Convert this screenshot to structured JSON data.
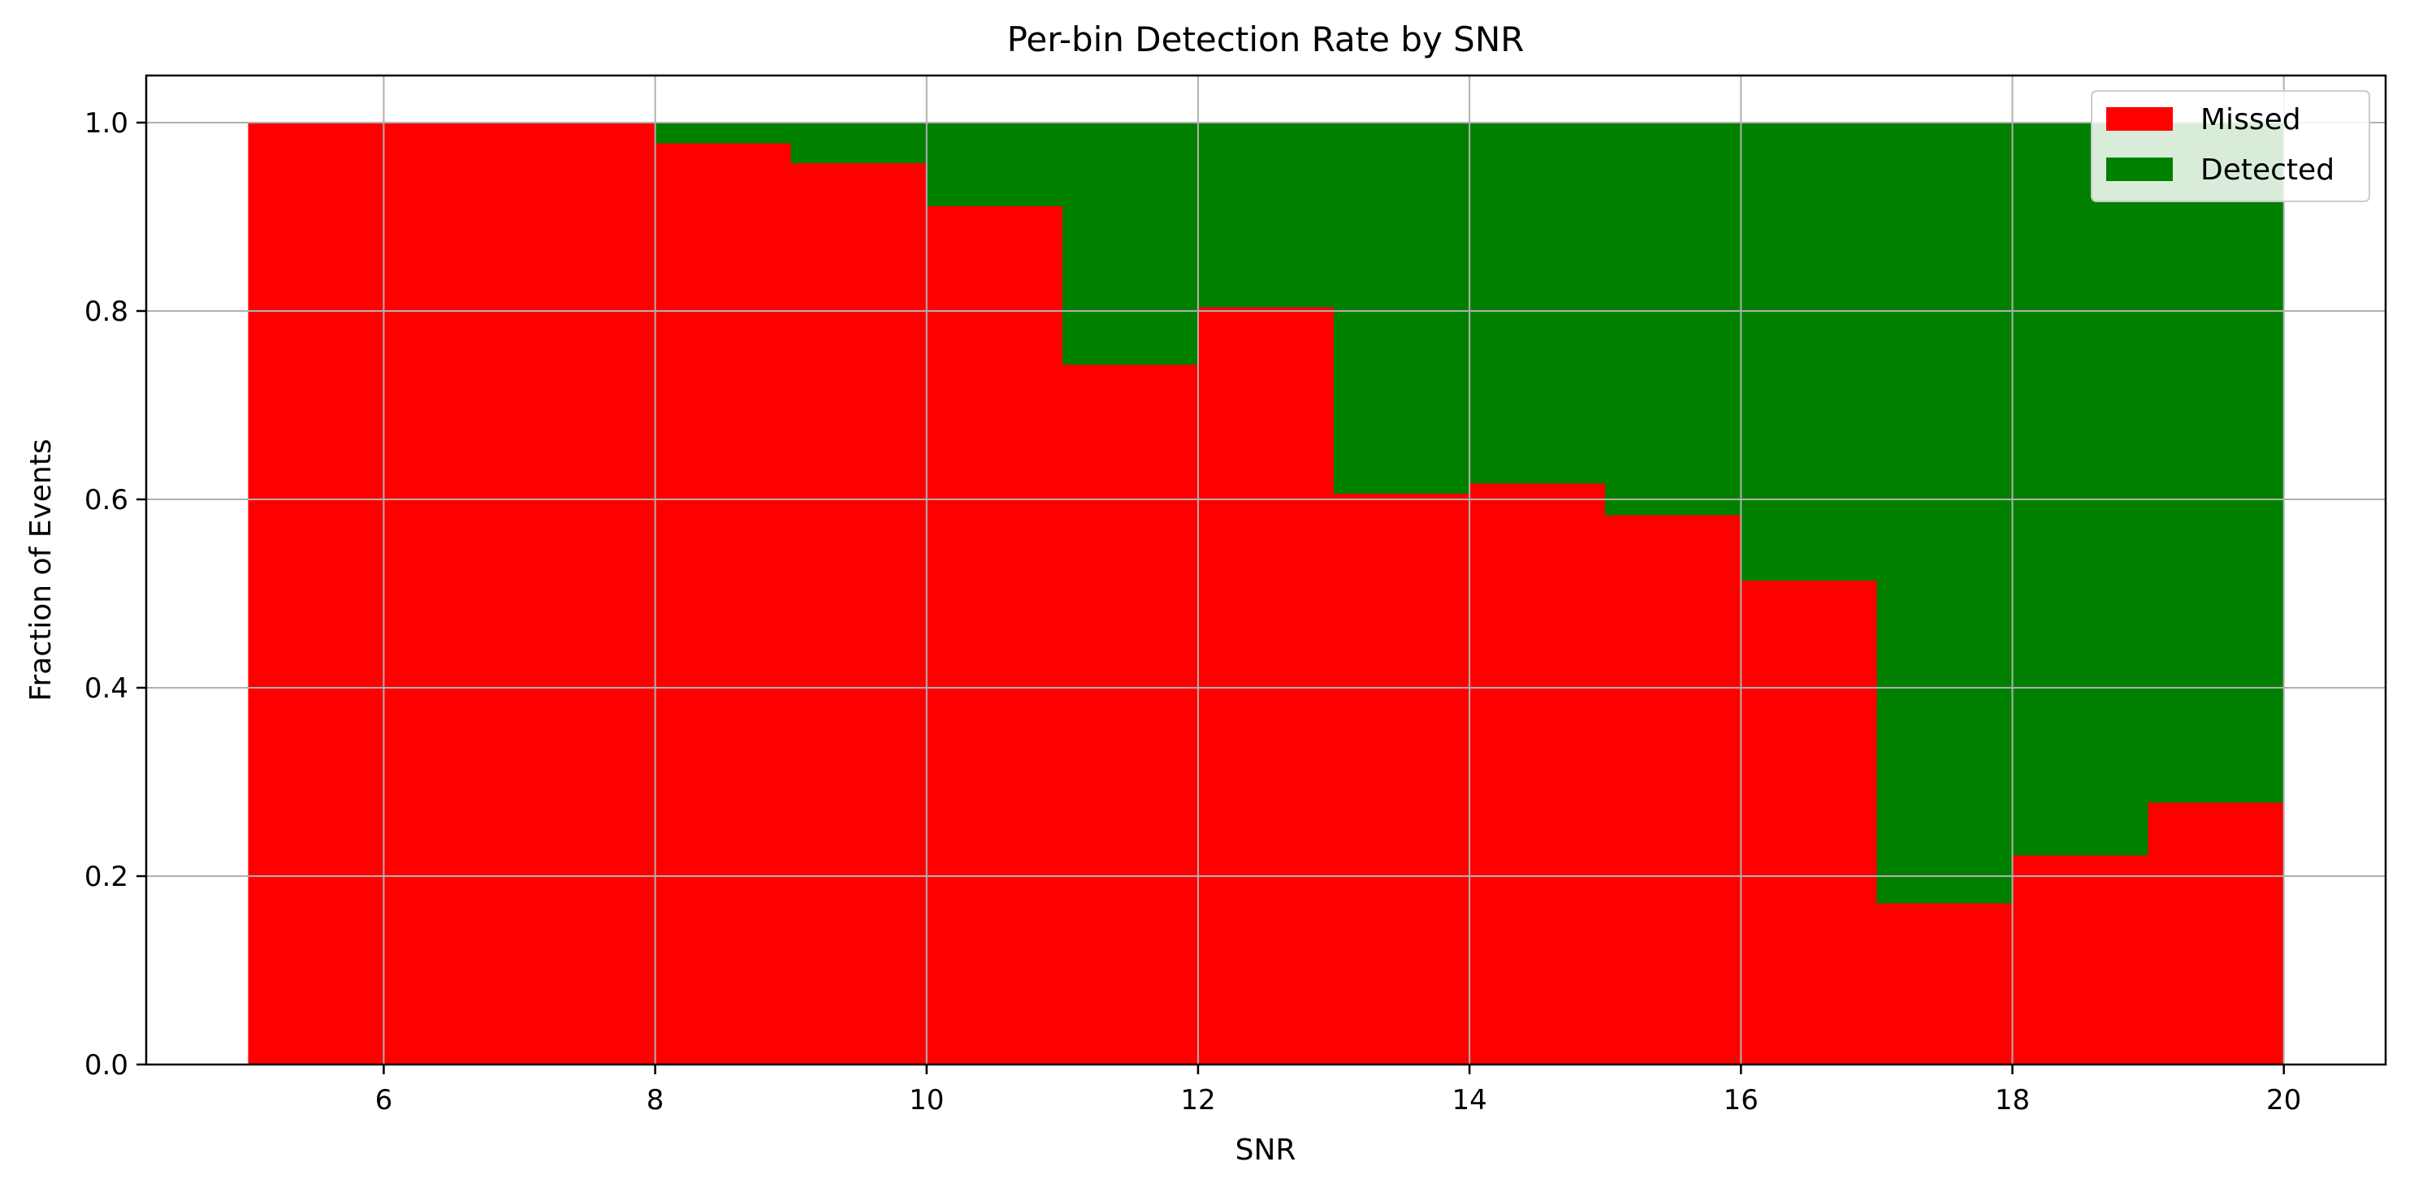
{
  "chart_data": {
    "type": "bar",
    "title": "Per-bin Detection Rate by SNR",
    "xlabel": "SNR",
    "ylabel": "Fraction of Events",
    "bin_edges": [
      5,
      6,
      7,
      8,
      9,
      10,
      11,
      12,
      13,
      14,
      15,
      16,
      17,
      18,
      19,
      20
    ],
    "series": [
      {
        "name": "Missed",
        "color": "#ff0000",
        "values": [
          1.0,
          1.0,
          1.0,
          0.978,
          0.957,
          0.911,
          0.743,
          0.804,
          0.606,
          0.617,
          0.583,
          0.514,
          0.171,
          0.222,
          0.278
        ]
      },
      {
        "name": "Detected",
        "color": "#008000",
        "values": [
          0.0,
          0.0,
          0.0,
          0.022,
          0.043,
          0.089,
          0.257,
          0.196,
          0.394,
          0.383,
          0.417,
          0.486,
          0.829,
          0.778,
          0.722
        ]
      }
    ],
    "xlim": [
      4.25,
      20.75
    ],
    "ylim": [
      0,
      1.05
    ],
    "xticks": [
      6,
      8,
      10,
      12,
      14,
      16,
      18,
      20
    ],
    "xtick_labels": [
      "6",
      "8",
      "10",
      "12",
      "14",
      "16",
      "18",
      "20"
    ],
    "yticks": [
      0.0,
      0.2,
      0.4,
      0.6,
      0.8,
      1.0
    ],
    "ytick_labels": [
      "0.0",
      "0.2",
      "0.4",
      "0.6",
      "0.8",
      "1.0"
    ],
    "grid": true,
    "legend_position": "top-right"
  }
}
